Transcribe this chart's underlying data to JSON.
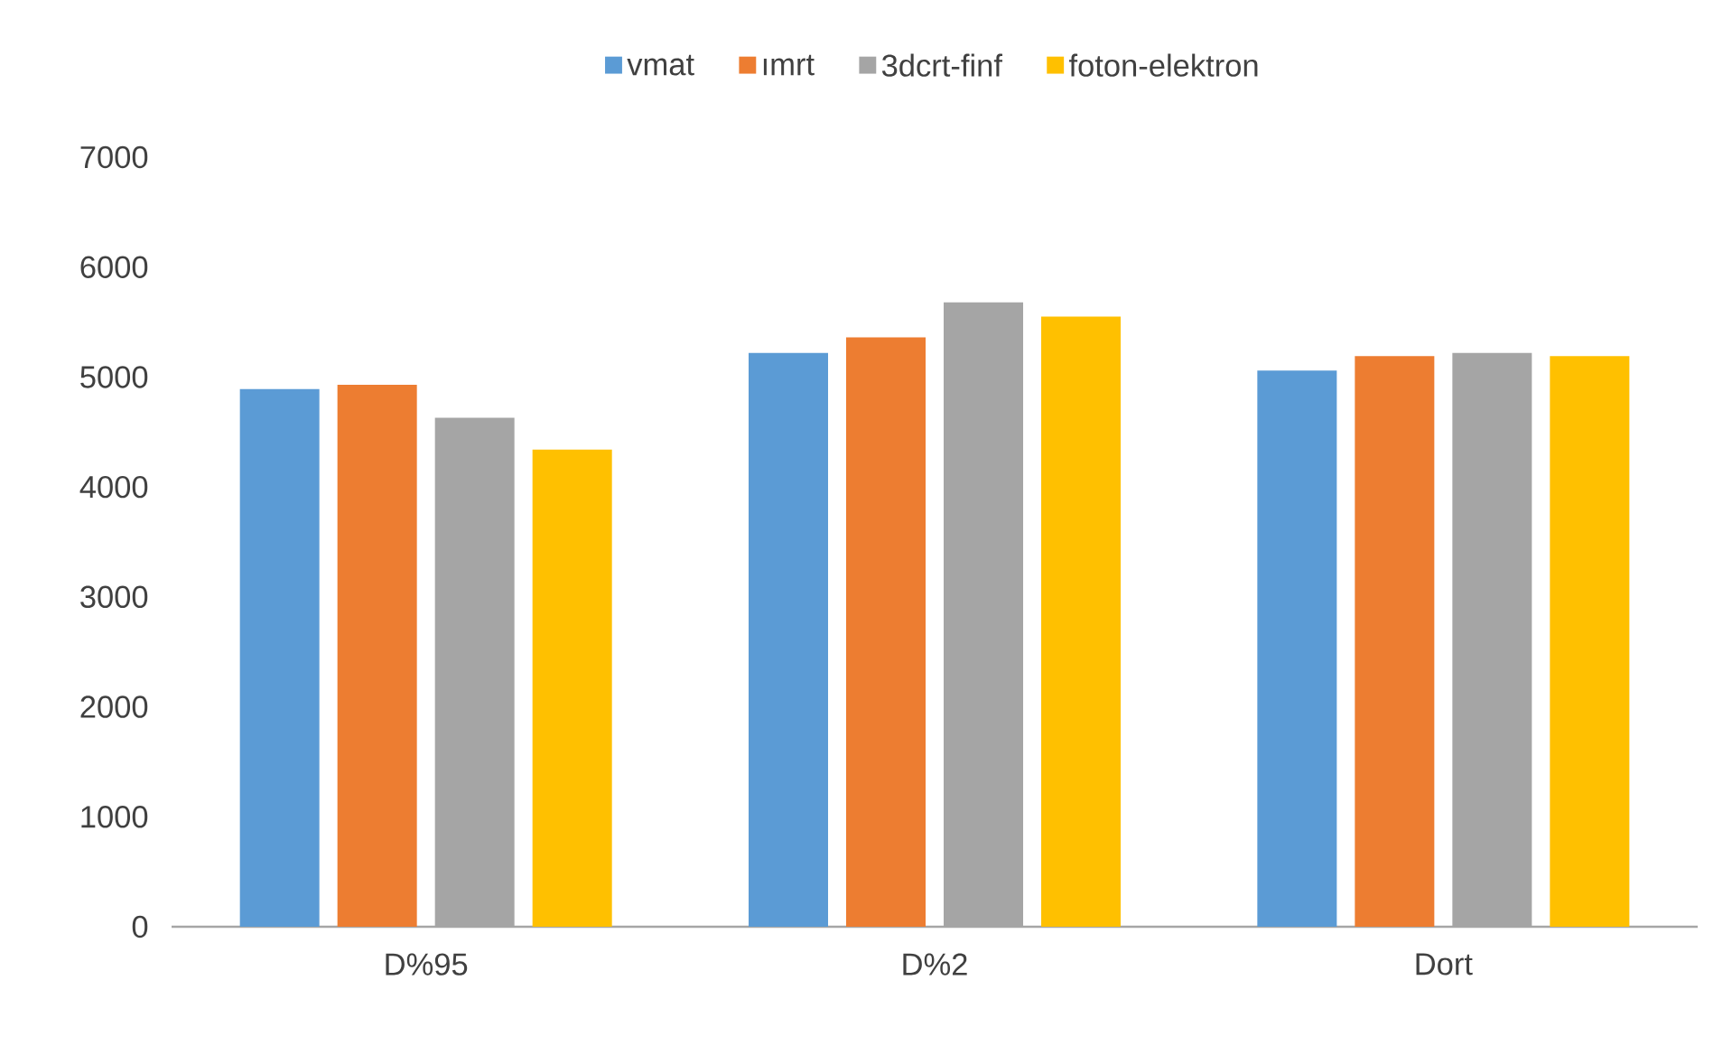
{
  "chart_data": {
    "type": "bar",
    "categories": [
      "D%95",
      "D%2",
      "Dort"
    ],
    "series": [
      {
        "name": "vmat",
        "color": "#5b9bd5",
        "values": [
          4890,
          5220,
          5060
        ]
      },
      {
        "name": "ımrt",
        "color": "#ed7d31",
        "values": [
          4930,
          5360,
          5190
        ]
      },
      {
        "name": "3dcrt-finf",
        "color": "#a5a5a5",
        "values": [
          4630,
          5680,
          5220
        ]
      },
      {
        "name": "foton-elektron",
        "color": "#ffc000",
        "values": [
          4340,
          5550,
          5190
        ]
      }
    ],
    "ylim": [
      0,
      7000
    ],
    "yticks": [
      0,
      1000,
      2000,
      3000,
      4000,
      5000,
      6000,
      7000
    ],
    "grid": false,
    "legend": "top"
  }
}
